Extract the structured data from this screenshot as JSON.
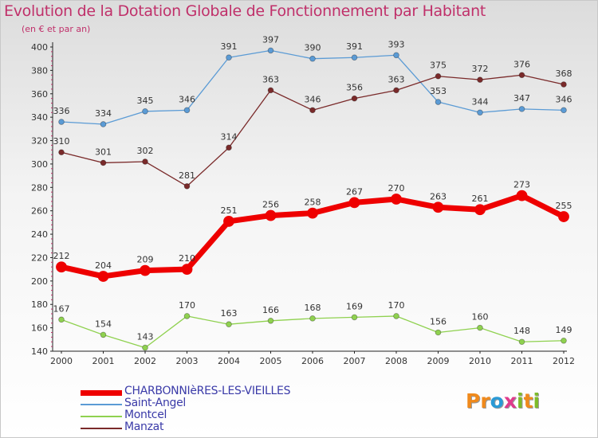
{
  "header": {
    "title": "Evolution de la Dotation Globale de Fonctionnement par Habitant",
    "subtitle": "(en € et par an)"
  },
  "logo": {
    "letters": [
      {
        "ch": "P",
        "color": "#f08a1c"
      },
      {
        "ch": "r",
        "color": "#f08a1c"
      },
      {
        "ch": "o",
        "color": "#2a9ad6"
      },
      {
        "ch": "x",
        "color": "#e03a8c"
      },
      {
        "ch": "i",
        "color": "#7dbb2a"
      },
      {
        "ch": "t",
        "color": "#f08a1c"
      },
      {
        "ch": "i",
        "color": "#7dbb2a"
      }
    ]
  },
  "chart_data": {
    "type": "line",
    "title": "Evolution de la Dotation Globale de Fonctionnement par Habitant",
    "subtitle": "(en € et par an)",
    "x": [
      "2000",
      "2001",
      "2002",
      "2003",
      "2004",
      "2005",
      "2006",
      "2007",
      "2008",
      "2009",
      "2010",
      "2011",
      "2012"
    ],
    "ylim": [
      140,
      400
    ],
    "yticks": [
      140,
      160,
      180,
      200,
      220,
      240,
      260,
      280,
      300,
      320,
      340,
      360,
      380,
      400
    ],
    "grid": false,
    "legend_position": "bottom-left",
    "series": [
      {
        "name": "CHARBONNIèRES-LES-VIEILLES",
        "color": "#ee0000",
        "width": 7,
        "values": [
          212,
          204,
          209,
          210,
          251,
          256,
          258,
          267,
          270,
          263,
          261,
          273,
          255
        ]
      },
      {
        "name": "Saint-Angel",
        "color": "#5b9bd5",
        "width": 1.3,
        "values": [
          336,
          334,
          345,
          346,
          391,
          397,
          390,
          391,
          393,
          353,
          344,
          347,
          346
        ]
      },
      {
        "name": "Montcel",
        "color": "#8fd14f",
        "width": 1.3,
        "values": [
          167,
          154,
          143,
          170,
          163,
          166,
          168,
          169,
          170,
          156,
          160,
          148,
          149
        ]
      },
      {
        "name": "Manzat",
        "color": "#7a2a2a",
        "width": 1.3,
        "values": [
          310,
          301,
          302,
          281,
          314,
          363,
          346,
          356,
          363,
          375,
          372,
          376,
          368
        ]
      }
    ]
  }
}
